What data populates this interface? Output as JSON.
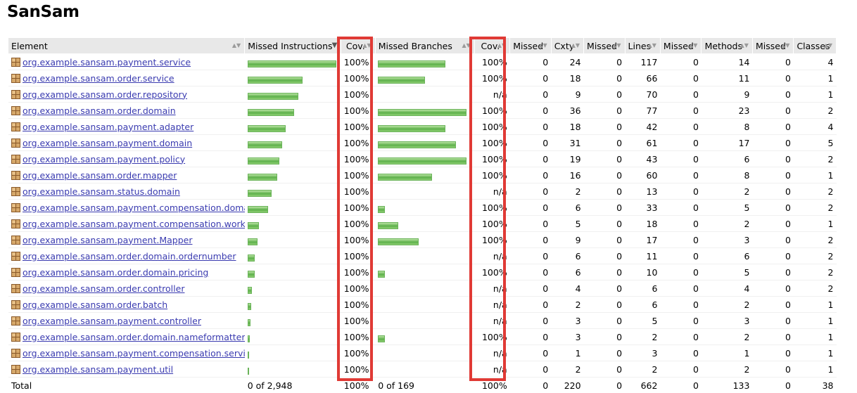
{
  "page_title": "SanSam",
  "columns": [
    "Element",
    "Missed Instructions",
    "Cov.",
    "Missed Branches",
    "Cov.",
    "Missed",
    "Cxty",
    "Missed",
    "Lines",
    "Missed",
    "Methods",
    "Missed",
    "Classes"
  ],
  "rows": [
    {
      "name": "org.example.sansam.payment.service",
      "instr_cov": "100%",
      "branch_cov": "100%",
      "mcx": "0",
      "cx": "24",
      "ml": "0",
      "l": "117",
      "mm": "0",
      "m": "14",
      "mc": "0",
      "c": "4",
      "ibar": 1.0,
      "bbar": 0.76
    },
    {
      "name": "org.example.sansam.order.service",
      "instr_cov": "100%",
      "branch_cov": "100%",
      "mcx": "0",
      "cx": "18",
      "ml": "0",
      "l": "66",
      "mm": "0",
      "m": "11",
      "mc": "0",
      "c": "1",
      "ibar": 0.62,
      "bbar": 0.53
    },
    {
      "name": "org.example.sansam.order.repository",
      "instr_cov": "100%",
      "branch_cov": "n/a",
      "mcx": "0",
      "cx": "9",
      "ml": "0",
      "l": "70",
      "mm": "0",
      "m": "9",
      "mc": "0",
      "c": "1",
      "ibar": 0.57,
      "bbar": 0
    },
    {
      "name": "org.example.sansam.order.domain",
      "instr_cov": "100%",
      "branch_cov": "100%",
      "mcx": "0",
      "cx": "36",
      "ml": "0",
      "l": "77",
      "mm": "0",
      "m": "23",
      "mc": "0",
      "c": "2",
      "ibar": 0.52,
      "bbar": 1.0
    },
    {
      "name": "org.example.sansam.payment.adapter",
      "instr_cov": "100%",
      "branch_cov": "100%",
      "mcx": "0",
      "cx": "18",
      "ml": "0",
      "l": "42",
      "mm": "0",
      "m": "8",
      "mc": "0",
      "c": "4",
      "ibar": 0.43,
      "bbar": 0.76
    },
    {
      "name": "org.example.sansam.payment.domain",
      "instr_cov": "100%",
      "branch_cov": "100%",
      "mcx": "0",
      "cx": "31",
      "ml": "0",
      "l": "61",
      "mm": "0",
      "m": "17",
      "mc": "0",
      "c": "5",
      "ibar": 0.39,
      "bbar": 0.88
    },
    {
      "name": "org.example.sansam.payment.policy",
      "instr_cov": "100%",
      "branch_cov": "100%",
      "mcx": "0",
      "cx": "19",
      "ml": "0",
      "l": "43",
      "mm": "0",
      "m": "6",
      "mc": "0",
      "c": "2",
      "ibar": 0.36,
      "bbar": 1.0
    },
    {
      "name": "org.example.sansam.order.mapper",
      "instr_cov": "100%",
      "branch_cov": "100%",
      "mcx": "0",
      "cx": "16",
      "ml": "0",
      "l": "60",
      "mm": "0",
      "m": "8",
      "mc": "0",
      "c": "1",
      "ibar": 0.33,
      "bbar": 0.61
    },
    {
      "name": "org.example.sansam.status.domain",
      "instr_cov": "100%",
      "branch_cov": "n/a",
      "mcx": "0",
      "cx": "2",
      "ml": "0",
      "l": "13",
      "mm": "0",
      "m": "2",
      "mc": "0",
      "c": "2",
      "ibar": 0.27,
      "bbar": 0
    },
    {
      "name": "org.example.sansam.payment.compensation.domain",
      "instr_cov": "100%",
      "branch_cov": "100%",
      "mcx": "0",
      "cx": "6",
      "ml": "0",
      "l": "33",
      "mm": "0",
      "m": "5",
      "mc": "0",
      "c": "2",
      "ibar": 0.23,
      "bbar": 0.08
    },
    {
      "name": "org.example.sansam.payment.compensation.worker",
      "instr_cov": "100%",
      "branch_cov": "100%",
      "mcx": "0",
      "cx": "5",
      "ml": "0",
      "l": "18",
      "mm": "0",
      "m": "2",
      "mc": "0",
      "c": "1",
      "ibar": 0.13,
      "bbar": 0.23
    },
    {
      "name": "org.example.sansam.payment.Mapper",
      "instr_cov": "100%",
      "branch_cov": "100%",
      "mcx": "0",
      "cx": "9",
      "ml": "0",
      "l": "17",
      "mm": "0",
      "m": "3",
      "mc": "0",
      "c": "2",
      "ibar": 0.11,
      "bbar": 0.46
    },
    {
      "name": "org.example.sansam.order.domain.ordernumber",
      "instr_cov": "100%",
      "branch_cov": "n/a",
      "mcx": "0",
      "cx": "6",
      "ml": "0",
      "l": "11",
      "mm": "0",
      "m": "6",
      "mc": "0",
      "c": "2",
      "ibar": 0.08,
      "bbar": 0
    },
    {
      "name": "org.example.sansam.order.domain.pricing",
      "instr_cov": "100%",
      "branch_cov": "100%",
      "mcx": "0",
      "cx": "6",
      "ml": "0",
      "l": "10",
      "mm": "0",
      "m": "5",
      "mc": "0",
      "c": "2",
      "ibar": 0.08,
      "bbar": 0.08
    },
    {
      "name": "org.example.sansam.order.controller",
      "instr_cov": "100%",
      "branch_cov": "n/a",
      "mcx": "0",
      "cx": "4",
      "ml": "0",
      "l": "6",
      "mm": "0",
      "m": "4",
      "mc": "0",
      "c": "2",
      "ibar": 0.045,
      "bbar": 0
    },
    {
      "name": "org.example.sansam.order.batch",
      "instr_cov": "100%",
      "branch_cov": "n/a",
      "mcx": "0",
      "cx": "2",
      "ml": "0",
      "l": "6",
      "mm": "0",
      "m": "2",
      "mc": "0",
      "c": "1",
      "ibar": 0.04,
      "bbar": 0
    },
    {
      "name": "org.example.sansam.payment.controller",
      "instr_cov": "100%",
      "branch_cov": "n/a",
      "mcx": "0",
      "cx": "3",
      "ml": "0",
      "l": "5",
      "mm": "0",
      "m": "3",
      "mc": "0",
      "c": "1",
      "ibar": 0.035,
      "bbar": 0
    },
    {
      "name": "org.example.sansam.order.domain.nameformatter",
      "instr_cov": "100%",
      "branch_cov": "100%",
      "mcx": "0",
      "cx": "3",
      "ml": "0",
      "l": "2",
      "mm": "0",
      "m": "2",
      "mc": "0",
      "c": "1",
      "ibar": 0.02,
      "bbar": 0.08
    },
    {
      "name": "org.example.sansam.payment.compensation.service",
      "instr_cov": "100%",
      "branch_cov": "n/a",
      "mcx": "0",
      "cx": "1",
      "ml": "0",
      "l": "3",
      "mm": "0",
      "m": "1",
      "mc": "0",
      "c": "1",
      "ibar": 0.015,
      "bbar": 0
    },
    {
      "name": "org.example.sansam.payment.util",
      "instr_cov": "100%",
      "branch_cov": "n/a",
      "mcx": "0",
      "cx": "2",
      "ml": "0",
      "l": "2",
      "mm": "0",
      "m": "2",
      "mc": "0",
      "c": "1",
      "ibar": 0.01,
      "bbar": 0
    }
  ],
  "total": {
    "label": "Total",
    "instr": "0 of 2,948",
    "instr_cov": "100%",
    "branch": "0 of 169",
    "branch_cov": "100%",
    "mcx": "0",
    "cx": "220",
    "ml": "0",
    "l": "662",
    "mm": "0",
    "m": "133",
    "mc": "0",
    "c": "38"
  },
  "colors": {
    "bar": "#5db04a",
    "link": "#3a3bb0",
    "highlight": "#e03a35",
    "header_bg": "#e8e8e8"
  },
  "icons": {
    "package": "package-icon",
    "sort": "sort-arrows-icon",
    "sort_active": "sort-descending-icon"
  }
}
